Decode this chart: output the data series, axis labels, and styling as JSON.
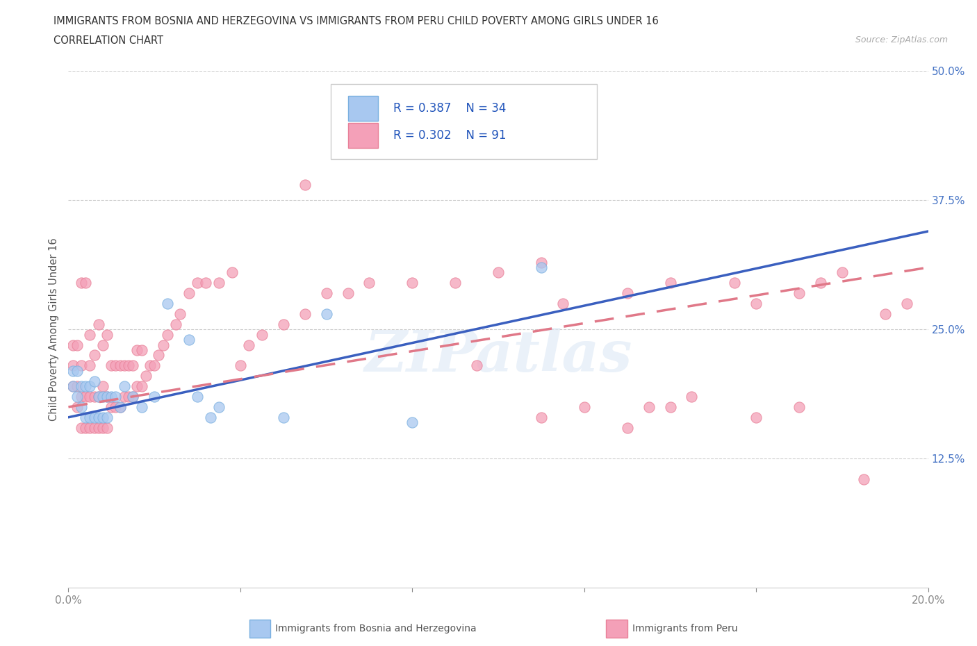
{
  "title_line1": "IMMIGRANTS FROM BOSNIA AND HERZEGOVINA VS IMMIGRANTS FROM PERU CHILD POVERTY AMONG GIRLS UNDER 16",
  "title_line2": "CORRELATION CHART",
  "source_text": "Source: ZipAtlas.com",
  "ylabel": "Child Poverty Among Girls Under 16",
  "x_min": 0.0,
  "x_max": 0.2,
  "y_min": 0.0,
  "y_max": 0.5,
  "color_bosnia": "#a8c8f0",
  "color_bosnia_edge": "#7ab0e0",
  "color_peru": "#f4a0b8",
  "color_peru_edge": "#e88098",
  "line_color_bosnia": "#3a5fbf",
  "line_color_peru": "#e07888",
  "R_bosnia": 0.387,
  "N_bosnia": 34,
  "R_peru": 0.302,
  "N_peru": 91,
  "watermark": "ZIPatlas",
  "bosnia_x": [
    0.001,
    0.001,
    0.002,
    0.002,
    0.003,
    0.003,
    0.004,
    0.004,
    0.005,
    0.005,
    0.006,
    0.006,
    0.007,
    0.007,
    0.008,
    0.008,
    0.009,
    0.009,
    0.01,
    0.011,
    0.012,
    0.013,
    0.015,
    0.017,
    0.02,
    0.023,
    0.028,
    0.03,
    0.033,
    0.035,
    0.05,
    0.06,
    0.08,
    0.11
  ],
  "bosnia_y": [
    0.195,
    0.21,
    0.185,
    0.21,
    0.175,
    0.195,
    0.165,
    0.195,
    0.165,
    0.195,
    0.165,
    0.2,
    0.165,
    0.185,
    0.165,
    0.185,
    0.165,
    0.185,
    0.185,
    0.185,
    0.175,
    0.195,
    0.185,
    0.175,
    0.185,
    0.275,
    0.24,
    0.185,
    0.165,
    0.175,
    0.165,
    0.265,
    0.16,
    0.31
  ],
  "peru_x": [
    0.001,
    0.001,
    0.001,
    0.002,
    0.002,
    0.002,
    0.003,
    0.003,
    0.003,
    0.003,
    0.004,
    0.004,
    0.004,
    0.005,
    0.005,
    0.005,
    0.005,
    0.006,
    0.006,
    0.006,
    0.007,
    0.007,
    0.007,
    0.008,
    0.008,
    0.008,
    0.009,
    0.009,
    0.009,
    0.01,
    0.01,
    0.011,
    0.011,
    0.012,
    0.012,
    0.013,
    0.013,
    0.014,
    0.014,
    0.015,
    0.015,
    0.016,
    0.016,
    0.017,
    0.017,
    0.018,
    0.019,
    0.02,
    0.021,
    0.022,
    0.023,
    0.025,
    0.026,
    0.028,
    0.03,
    0.032,
    0.035,
    0.038,
    0.04,
    0.042,
    0.045,
    0.05,
    0.055,
    0.06,
    0.065,
    0.07,
    0.08,
    0.09,
    0.1,
    0.11,
    0.115,
    0.13,
    0.14,
    0.155,
    0.16,
    0.17,
    0.175,
    0.18,
    0.185,
    0.19,
    0.195,
    0.13,
    0.14,
    0.055,
    0.095,
    0.11,
    0.12,
    0.135,
    0.145,
    0.16,
    0.17
  ],
  "peru_y": [
    0.195,
    0.215,
    0.235,
    0.175,
    0.195,
    0.235,
    0.155,
    0.185,
    0.215,
    0.295,
    0.155,
    0.185,
    0.295,
    0.155,
    0.185,
    0.215,
    0.245,
    0.155,
    0.185,
    0.225,
    0.155,
    0.185,
    0.255,
    0.155,
    0.195,
    0.235,
    0.155,
    0.185,
    0.245,
    0.175,
    0.215,
    0.175,
    0.215,
    0.175,
    0.215,
    0.185,
    0.215,
    0.185,
    0.215,
    0.185,
    0.215,
    0.195,
    0.23,
    0.195,
    0.23,
    0.205,
    0.215,
    0.215,
    0.225,
    0.235,
    0.245,
    0.255,
    0.265,
    0.285,
    0.295,
    0.295,
    0.295,
    0.305,
    0.215,
    0.235,
    0.245,
    0.255,
    0.265,
    0.285,
    0.285,
    0.295,
    0.295,
    0.295,
    0.305,
    0.315,
    0.275,
    0.285,
    0.295,
    0.295,
    0.275,
    0.285,
    0.295,
    0.305,
    0.105,
    0.265,
    0.275,
    0.155,
    0.175,
    0.39,
    0.215,
    0.165,
    0.175,
    0.175,
    0.185,
    0.165,
    0.175
  ]
}
